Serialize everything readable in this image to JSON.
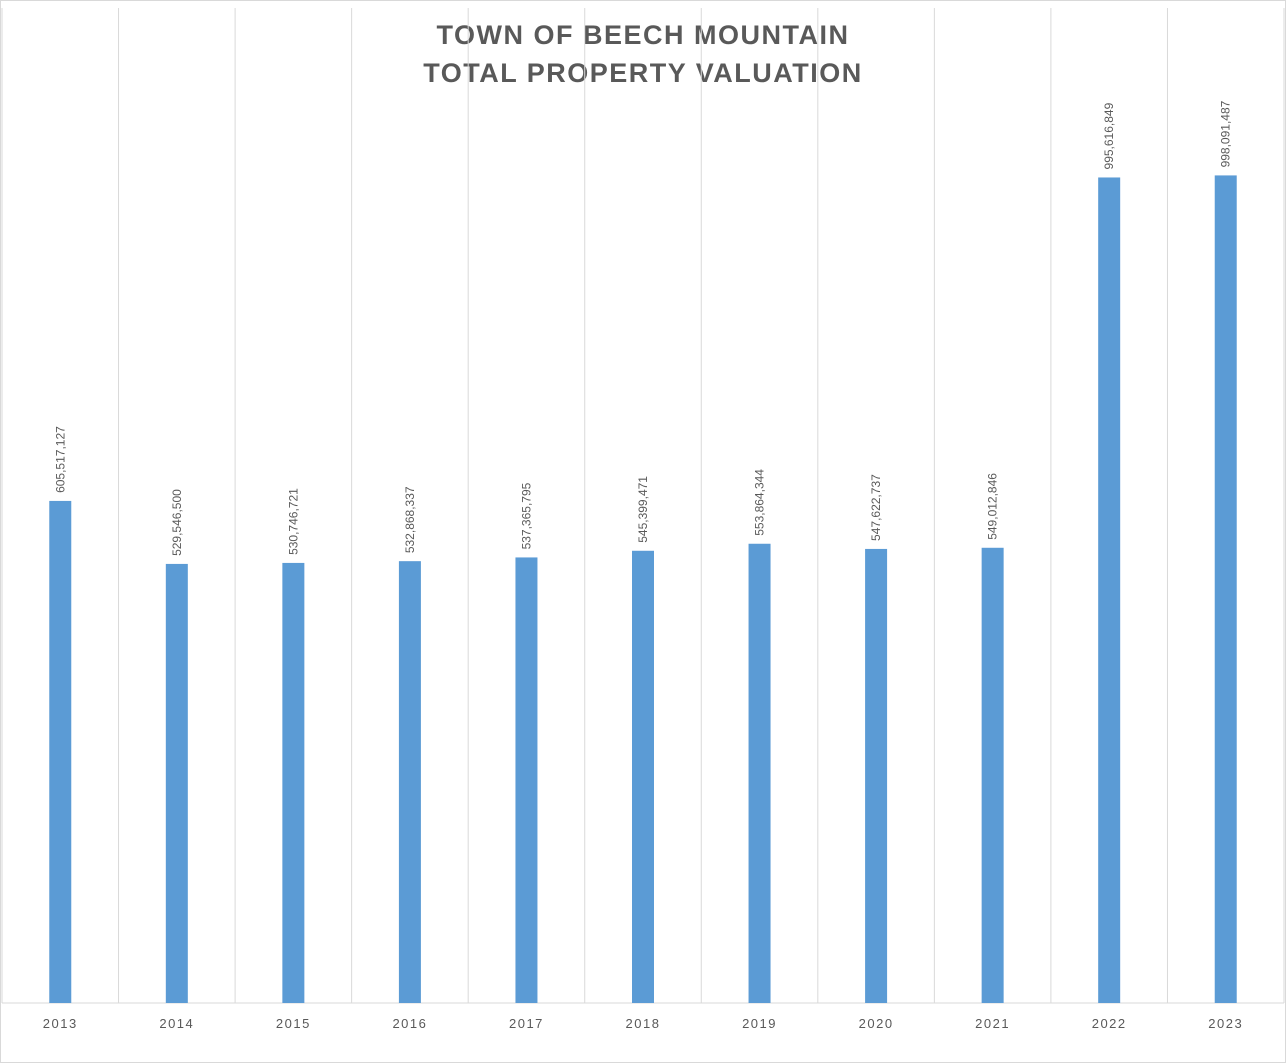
{
  "chart_data": {
    "type": "bar",
    "title": [
      "TOWN OF BEECH MOUNTAIN",
      "TOTAL PROPERTY VALUATION"
    ],
    "categories": [
      "2013",
      "2014",
      "2015",
      "2016",
      "2017",
      "2018",
      "2019",
      "2020",
      "2021",
      "2022",
      "2023"
    ],
    "values": [
      605517127,
      529546500,
      530746721,
      532868337,
      537365795,
      545399471,
      553864344,
      547622737,
      549012846,
      995616849,
      998091487
    ],
    "value_labels": [
      "605,517,127",
      "529,546,500",
      "530,746,721",
      "532,868,337",
      "537,365,795",
      "545,399,471",
      "553,864,344",
      "547,622,737",
      "549,012,846",
      "995,616,849",
      "998,091,487"
    ],
    "color": "#5b9bd5",
    "ylim": [
      0,
      1200000000
    ]
  }
}
